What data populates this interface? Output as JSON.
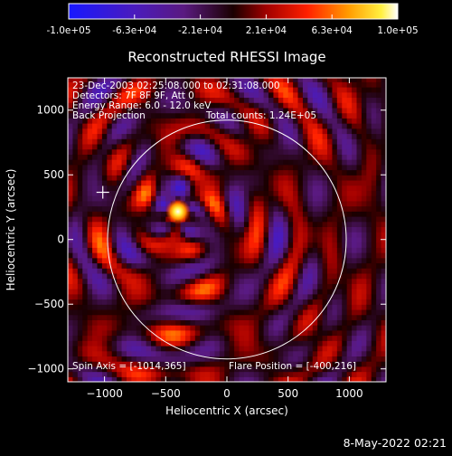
{
  "colorbar": {
    "tick_labels": [
      "-1.0e+05",
      "-6.3e+04",
      "-2.1e+04",
      "2.1e+04",
      "6.3e+04",
      "1.0e+05"
    ],
    "range": [
      -100000,
      100000
    ],
    "stops": [
      {
        "value": -100000,
        "color": "#1818ff"
      },
      {
        "value": -60000,
        "color": "#4a1bbd"
      },
      {
        "value": -30000,
        "color": "#5a1a80"
      },
      {
        "value": 0,
        "color": "#1a0000"
      },
      {
        "value": 20000,
        "color": "#a00000"
      },
      {
        "value": 45000,
        "color": "#ff2000"
      },
      {
        "value": 70000,
        "color": "#ff9b00"
      },
      {
        "value": 90000,
        "color": "#fff040"
      },
      {
        "value": 100000,
        "color": "#ffffff"
      }
    ]
  },
  "chart_data": {
    "type": "heatmap",
    "title": "Reconstructed RHESSI Image",
    "xlabel": "Heliocentric X (arcsec)",
    "ylabel": "Heliocentric Y (arcsec)",
    "xlim": [
      -1300,
      1300
    ],
    "ylim": [
      -1100,
      1250
    ],
    "xticks": [
      -1000,
      -500,
      0,
      500,
      1000
    ],
    "xtick_labels": [
      "−1000",
      "−500",
      "0",
      "500",
      "1000"
    ],
    "yticks": [
      -1000,
      -500,
      0,
      500,
      1000
    ],
    "ytick_labels": [
      "−1000",
      "−500",
      "0",
      "500",
      "1000"
    ],
    "annotations": [
      "23-Dec-2003 02:25:08.000 to 02:31:08.000",
      "Detectors: 7F 8F 9F, Att 0",
      "Energy Range: 6.0 - 12.0 keV",
      "Back Projection",
      "Total counts: 1.24E+05"
    ],
    "footer_annotations": [
      "Spin Axis = [-1014,365]",
      "Flare Position = [-400,216]"
    ],
    "solar_disk": {
      "center": [
        0,
        0
      ],
      "radius_arcsec": 975
    },
    "spin_axis": [
      -1014,
      365
    ],
    "flare_position": [
      -400,
      216
    ],
    "peak_position": [
      -400,
      216
    ],
    "peak_value": 100000,
    "total_counts": 124000,
    "grid": false,
    "legend": "colorbar-top"
  },
  "timestamp": "8-May-2022 02:21"
}
